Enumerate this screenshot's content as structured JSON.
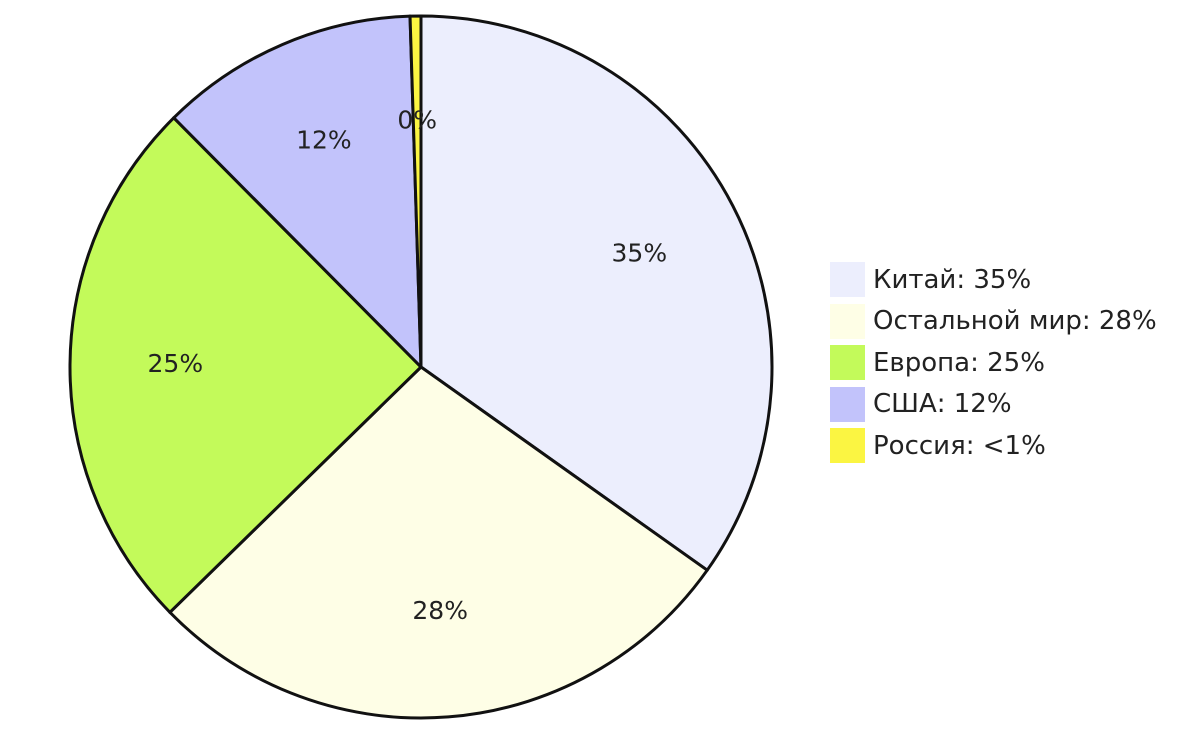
{
  "chart_data": {
    "type": "pie",
    "slices": [
      {
        "label": "Китай: 35%",
        "value": 35,
        "slice_label": "35%",
        "color": "#eceefd"
      },
      {
        "label": "Остальной мир: 28%",
        "value": 28,
        "slice_label": "28%",
        "color": "#fefee6"
      },
      {
        "label": "Европа: 25%",
        "value": 25,
        "slice_label": "25%",
        "color": "#c3fa5a"
      },
      {
        "label": "США: 12%",
        "value": 12,
        "slice_label": "12%",
        "color": "#c2c3fb"
      },
      {
        "label": "Россия: <1%",
        "value": 0.5,
        "slice_label": "0%",
        "color": "#fbf542"
      }
    ],
    "start": "12 o'clock",
    "direction": "clockwise",
    "legend_position": "right"
  }
}
